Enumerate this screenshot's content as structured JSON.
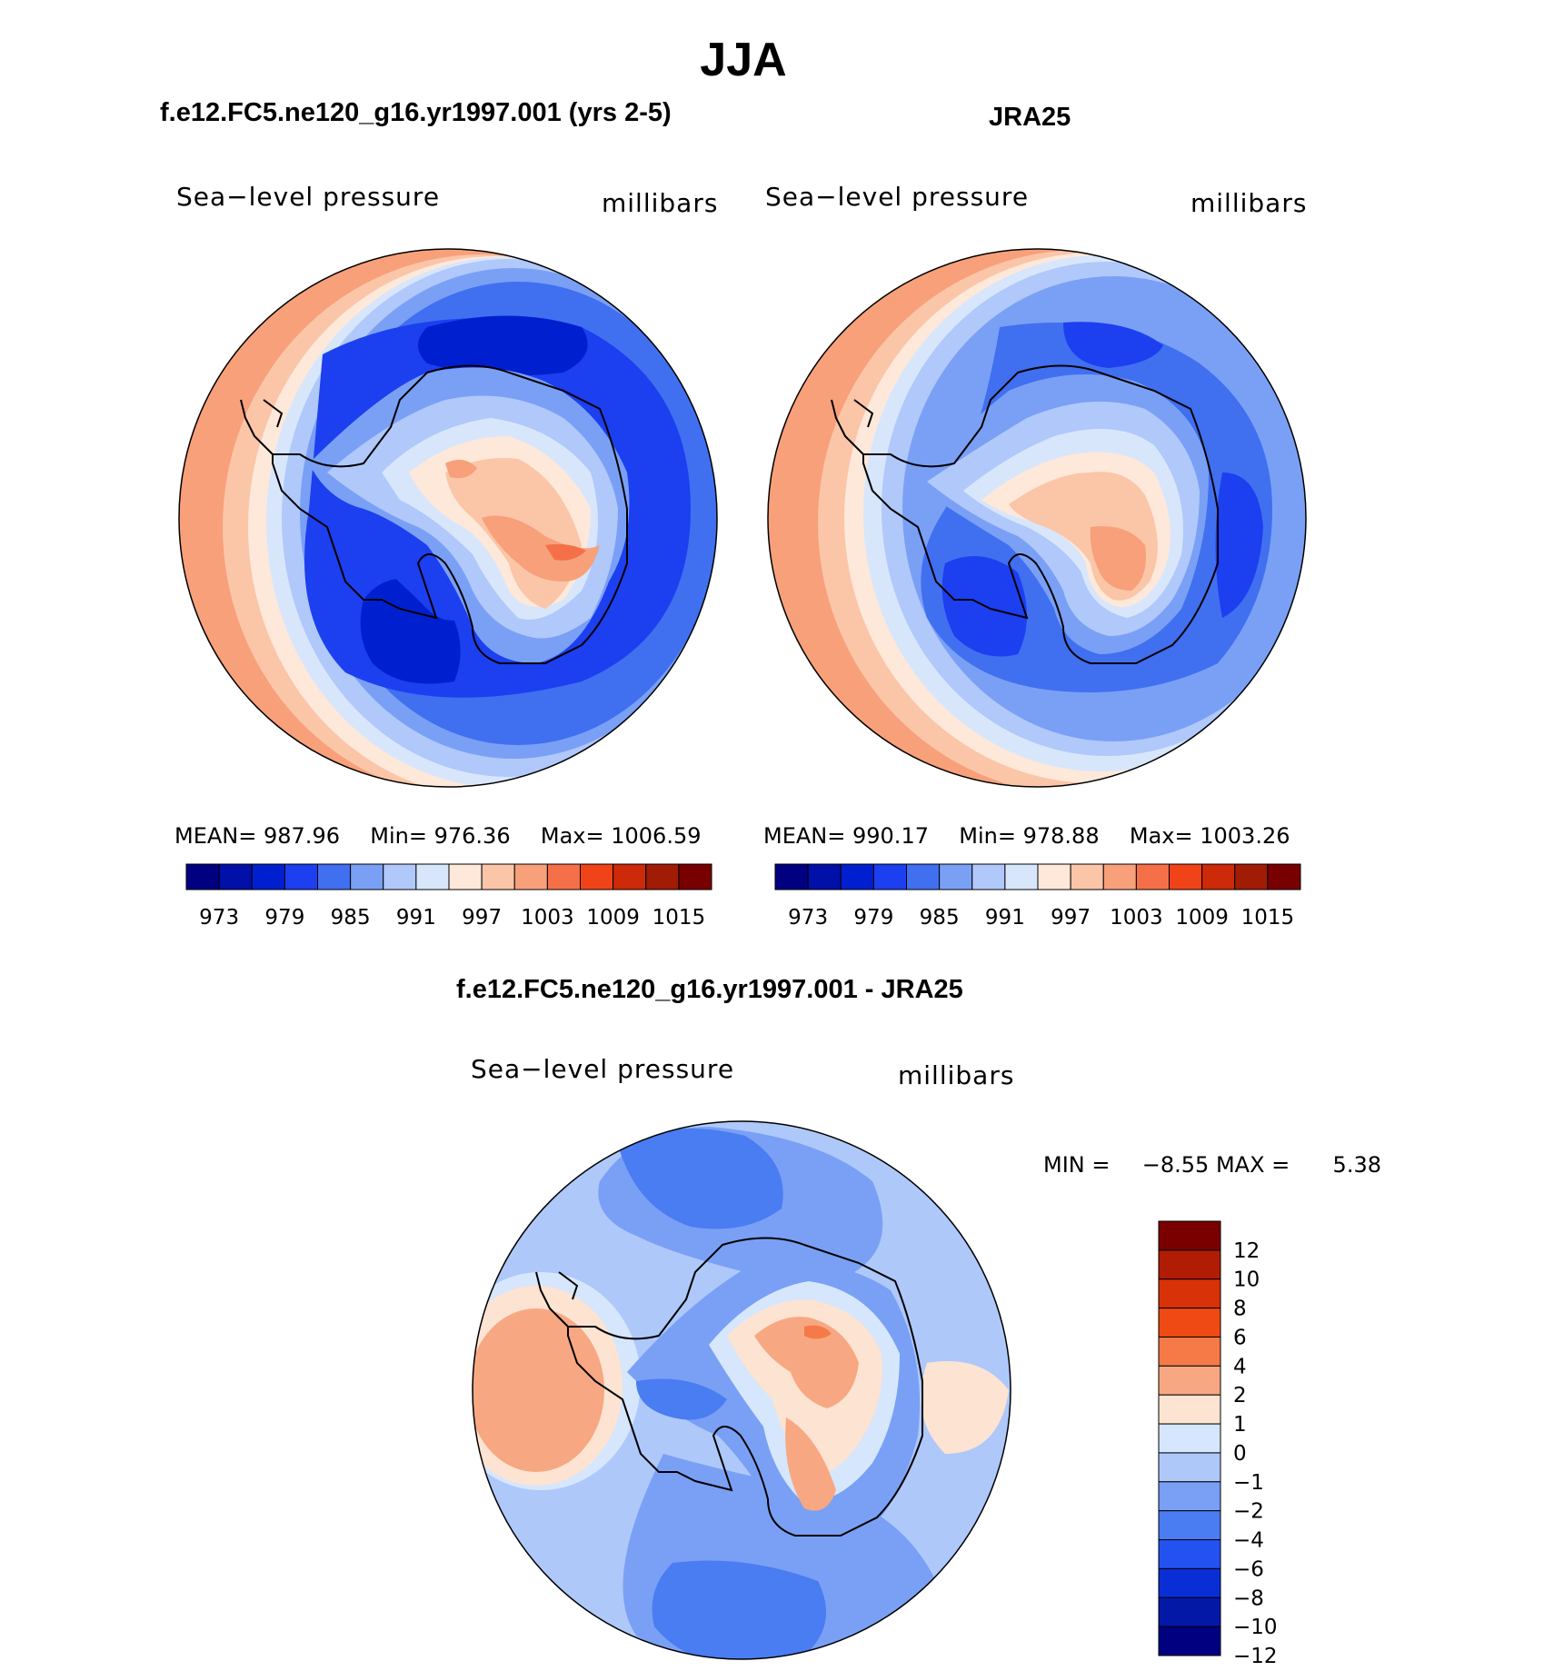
{
  "title": "JJA",
  "panels": [
    {
      "id": "model",
      "heading": "f.e12.FC5.ne120_g16.yr1997.001 (yrs 2-5)",
      "variable": "Sea−level pressure",
      "units": "millibars",
      "stats": {
        "mean_label": "MEAN=",
        "mean": "987.96",
        "min_label": "Min=",
        "min": "976.36",
        "max_label": "Max=",
        "max": "1006.59"
      },
      "colorbar_labels": [
        "973",
        "979",
        "985",
        "991",
        "997",
        "1003",
        "1009",
        "1015"
      ]
    },
    {
      "id": "obs",
      "heading": "JRA25",
      "variable": "Sea−level pressure",
      "units": "millibars",
      "stats": {
        "mean_label": "MEAN=",
        "mean": "990.17",
        "min_label": "Min=",
        "min": "978.88",
        "max_label": "Max=",
        "max": "1003.26"
      },
      "colorbar_labels": [
        "973",
        "979",
        "985",
        "991",
        "997",
        "1003",
        "1009",
        "1015"
      ]
    }
  ],
  "diff": {
    "heading": "f.e12.FC5.ne120_g16.yr1997.001 - JRA25",
    "variable": "Sea−level pressure",
    "units": "millibars",
    "min_label": "MIN =",
    "min": "−8.55",
    "max_label": "MAX =",
    "max": "5.38",
    "colorbar_labels": [
      "12",
      "10",
      "8",
      "6",
      "4",
      "2",
      "1",
      "0",
      "−1",
      "−2",
      "−4",
      "−6",
      "−8",
      "−10",
      "−12"
    ]
  },
  "chart_data": [
    {
      "type": "heatmap",
      "title": "Sea−level pressure",
      "subtitle": "f.e12.FC5.ne120_g16.yr1997.001 (yrs 2-5)",
      "projection": "south polar stereographic",
      "units": "millibars",
      "mean": 987.96,
      "min": 976.36,
      "max": 1006.59,
      "levels": [
        973,
        976,
        979,
        982,
        985,
        988,
        991,
        994,
        997,
        1000,
        1003,
        1006,
        1009,
        1012,
        1015
      ]
    },
    {
      "type": "heatmap",
      "title": "Sea−level pressure",
      "subtitle": "JRA25",
      "projection": "south polar stereographic",
      "units": "millibars",
      "mean": 990.17,
      "min": 978.88,
      "max": 1003.26,
      "levels": [
        973,
        976,
        979,
        982,
        985,
        988,
        991,
        994,
        997,
        1000,
        1003,
        1006,
        1009,
        1012,
        1015
      ]
    },
    {
      "type": "heatmap",
      "title": "Sea−level pressure",
      "subtitle": "f.e12.FC5.ne120_g16.yr1997.001 - JRA25",
      "projection": "south polar stereographic",
      "units": "millibars",
      "min": -8.55,
      "max": 5.38,
      "levels": [
        -12,
        -10,
        -8,
        -6,
        -4,
        -2,
        -1,
        0,
        1,
        2,
        4,
        6,
        8,
        10,
        12
      ]
    }
  ],
  "colors": {
    "abs_palette": [
      "#000080",
      "#0010a8",
      "#0020d0",
      "#1c3ff0",
      "#4070f0",
      "#7aa0f5",
      "#b0c8fa",
      "#d8e6fc",
      "#fde8da",
      "#fbc5a8",
      "#f7a07a",
      "#f57048",
      "#f04418",
      "#cc2a08",
      "#a01c04",
      "#780000"
    ],
    "diff_palette": [
      "#7a0000",
      "#b01c04",
      "#d83208",
      "#f04a14",
      "#f57a48",
      "#f7a882",
      "#fde3d2",
      "#d6e6fc",
      "#aec8fa",
      "#7aa0f5",
      "#4a7cf2",
      "#2452f0",
      "#0a2ed6",
      "#0418a8",
      "#000080"
    ],
    "coast": "#000000"
  }
}
